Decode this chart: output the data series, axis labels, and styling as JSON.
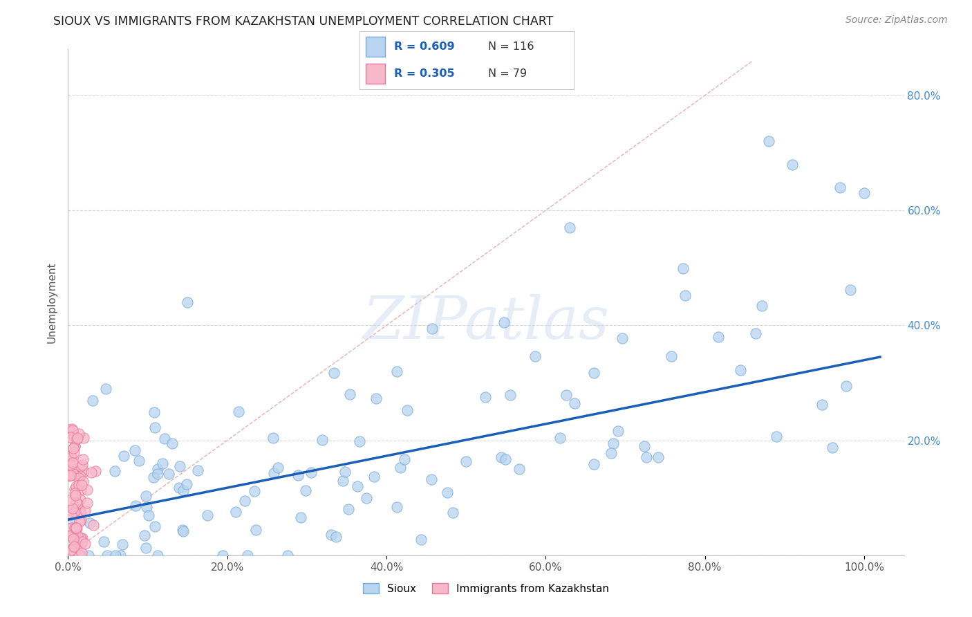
{
  "title": "SIOUX VS IMMIGRANTS FROM KAZAKHSTAN UNEMPLOYMENT CORRELATION CHART",
  "source": "Source: ZipAtlas.com",
  "ylabel": "Unemployment",
  "watermark": "ZIPatlas",
  "legend_sioux_R": "R = 0.609",
  "legend_sioux_N": "N = 116",
  "legend_kazakh_R": "R = 0.305",
  "legend_kazakh_N": "N = 79",
  "legend_label_sioux": "Sioux",
  "legend_label_kazakh": "Immigrants from Kazakhstan",
  "sioux_color": "#b8d4f0",
  "sioux_edge": "#7aaad8",
  "kazakh_color": "#f8b8cc",
  "kazakh_edge": "#e87898",
  "regression_line_color": "#1a5eb8",
  "diag_line_color": "#e8b0b0",
  "background_color": "#ffffff",
  "grid_color": "#d8d8d8",
  "xlim": [
    0.0,
    1.05
  ],
  "ylim": [
    0.0,
    0.88
  ],
  "regression_x0": 0.0,
  "regression_x1": 1.02,
  "regression_y0": 0.062,
  "regression_y1": 0.345,
  "title_color": "#222222",
  "source_color": "#888888",
  "axis_label_color": "#555555",
  "right_tick_color": "#4488cc"
}
